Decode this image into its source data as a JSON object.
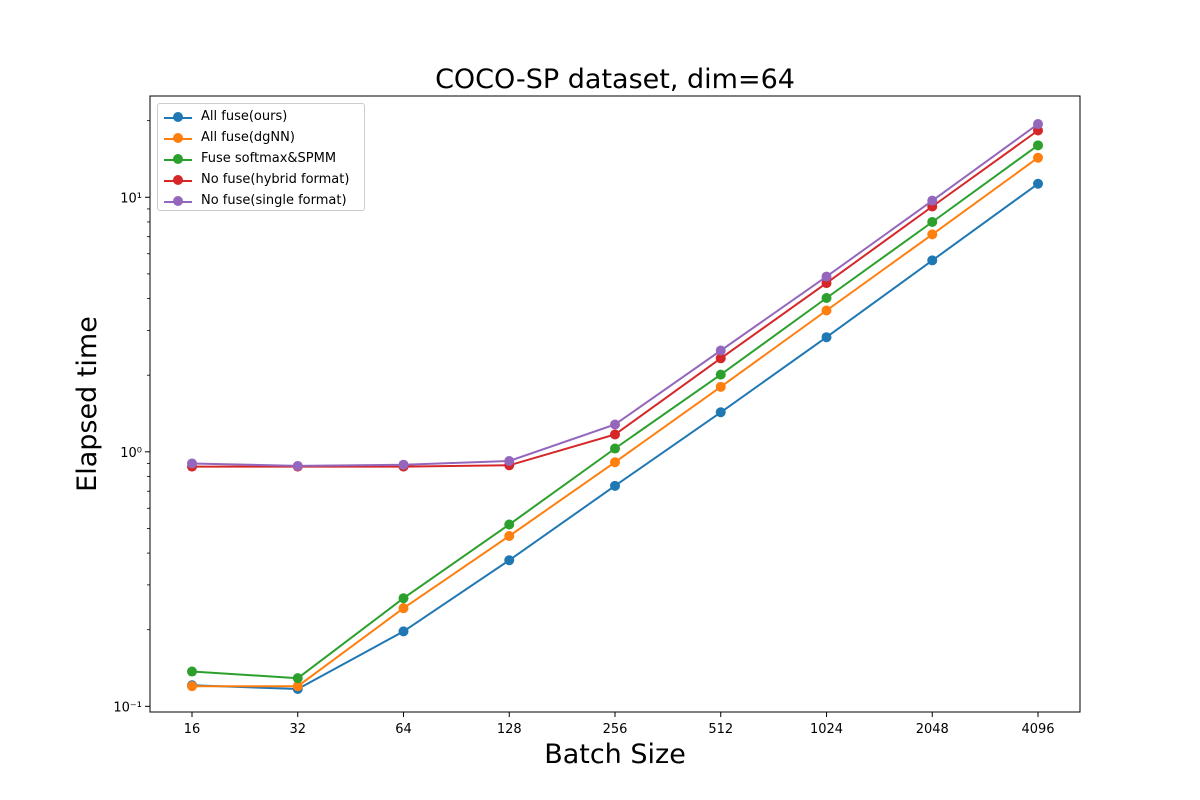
{
  "chart_data": {
    "type": "line",
    "title": "COCO-SP dataset, dim=64",
    "xlabel": "Batch Size",
    "ylabel": "Elapsed time",
    "categories": [
      "16",
      "32",
      "64",
      "128",
      "256",
      "512",
      "1024",
      "2048",
      "4096"
    ],
    "y_scale": "log",
    "ylim": [
      0.095,
      25
    ],
    "y_ticks": [
      {
        "value": 0.1,
        "label": "10⁻¹"
      },
      {
        "value": 1,
        "label": "10⁰"
      },
      {
        "value": 10,
        "label": "10¹"
      }
    ],
    "grid": false,
    "legend_position": "top-left",
    "series": [
      {
        "name": "All fuse(ours)",
        "color": "#1f77b4",
        "values": [
          0.121,
          0.117,
          0.197,
          0.375,
          0.735,
          1.43,
          2.82,
          5.65,
          11.3
        ]
      },
      {
        "name": "All fuse(dgNN)",
        "color": "#ff7f0e",
        "values": [
          0.12,
          0.12,
          0.243,
          0.467,
          0.91,
          1.8,
          3.59,
          7.15,
          14.3
        ]
      },
      {
        "name": "Fuse softmax&SPMM",
        "color": "#2ca02c",
        "values": [
          0.137,
          0.129,
          0.266,
          0.518,
          1.03,
          2.01,
          4.02,
          8.0,
          16.0
        ]
      },
      {
        "name": "No fuse(hybrid format)",
        "color": "#d62728",
        "values": [
          0.875,
          0.875,
          0.875,
          0.885,
          1.17,
          2.33,
          4.6,
          9.2,
          18.3
        ]
      },
      {
        "name": "No fuse(single format)",
        "color": "#9467bd",
        "values": [
          0.9,
          0.88,
          0.89,
          0.92,
          1.28,
          2.5,
          4.88,
          9.7,
          19.4
        ]
      }
    ]
  }
}
